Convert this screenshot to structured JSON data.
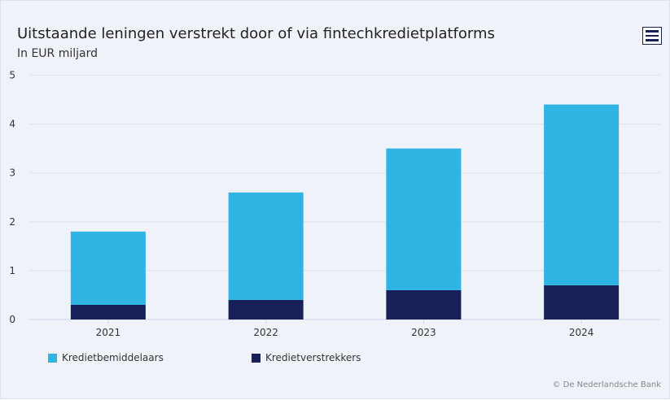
{
  "chart_data": {
    "type": "bar",
    "stacked": true,
    "title": "Uitstaande leningen verstrekt door of via fintechkredietplatforms",
    "subtitle": "In EUR miljard",
    "categories": [
      "2021",
      "2022",
      "2023",
      "2024"
    ],
    "series": [
      {
        "name": "Kredietverstrekkers",
        "values": [
          0.3,
          0.4,
          0.6,
          0.7
        ],
        "color": "#182157"
      },
      {
        "name": "Kredietbemiddelaars",
        "values": [
          1.5,
          2.2,
          2.9,
          3.7
        ],
        "color": "#2fb4e3"
      }
    ],
    "ylim": [
      0,
      5
    ],
    "yticks": [
      "0",
      "1",
      "2",
      "3",
      "4",
      "5"
    ],
    "grid": true,
    "legend": "bottom-left"
  },
  "credit": "© De Nederlandsche Bank",
  "menu_icon": "hamburger-icon"
}
